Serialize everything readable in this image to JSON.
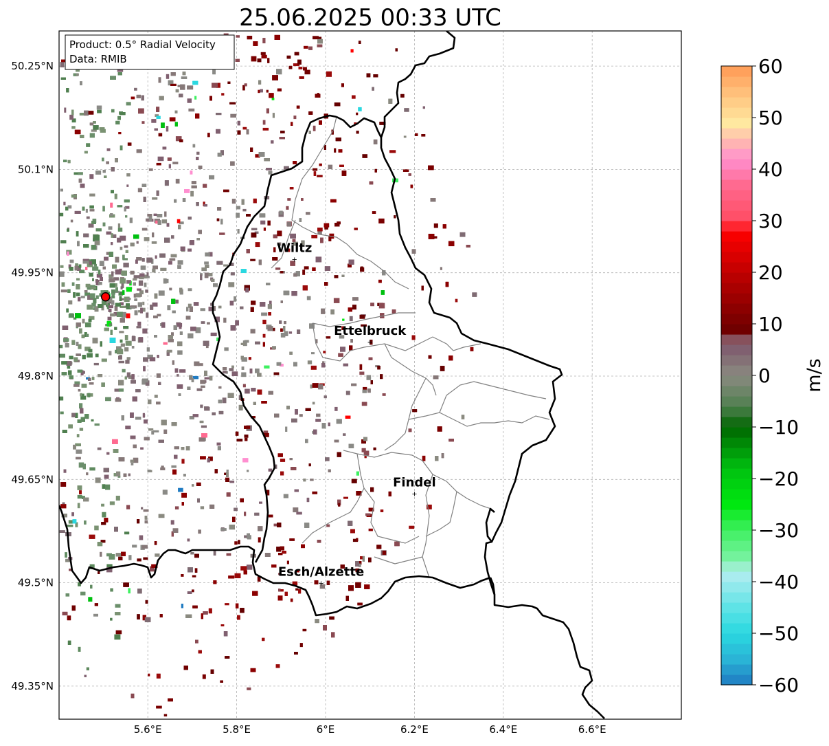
{
  "title": "25.06.2025 00:33 UTC",
  "info_box": {
    "line1": "Product: 0.5° Radial Velocity",
    "line2": "Data: RMIB"
  },
  "map": {
    "lon_ticks": [
      {
        "value": 5.6,
        "label": "5.6°E"
      },
      {
        "value": 5.8,
        "label": "5.8°E"
      },
      {
        "value": 6.0,
        "label": "6°E"
      },
      {
        "value": 6.2,
        "label": "6.2°E"
      },
      {
        "value": 6.4,
        "label": "6.4°E"
      },
      {
        "value": 6.6,
        "label": "6.6°E"
      }
    ],
    "lat_ticks": [
      {
        "value": 50.25,
        "label": "50.25°N"
      },
      {
        "value": 50.1,
        "label": "50.1°N"
      },
      {
        "value": 49.95,
        "label": "49.95°N"
      },
      {
        "value": 49.8,
        "label": "49.8°N"
      },
      {
        "value": 49.65,
        "label": "49.65°N"
      },
      {
        "value": 49.5,
        "label": "49.5°N"
      },
      {
        "value": 49.35,
        "label": "49.35°N"
      }
    ],
    "cities": [
      {
        "name": "Wiltz",
        "lon": 5.93,
        "lat": 49.97
      },
      {
        "name": "Ettelbruck",
        "lon": 6.1,
        "lat": 49.85
      },
      {
        "name": "Findel",
        "lon": 6.2,
        "lat": 49.63
      },
      {
        "name": "Esch/Alzette",
        "lon": 5.99,
        "lat": 49.5
      }
    ],
    "radar_site": {
      "lon": 5.505,
      "lat": 49.915
    }
  },
  "colorbar": {
    "label": "m/s",
    "ticks": [
      60,
      50,
      40,
      30,
      20,
      10,
      0,
      -10,
      -20,
      -30,
      -40,
      -50,
      -60
    ],
    "tick_labels": [
      "60",
      "50",
      "40",
      "30",
      "20",
      "10",
      "0",
      "−10",
      "−20",
      "−30",
      "−40",
      "−50",
      "−60"
    ],
    "min": -60,
    "max": 60,
    "stops": [
      {
        "v": -60,
        "c": "#1f7bc2"
      },
      {
        "v": -55,
        "c": "#2ab4d6"
      },
      {
        "v": -50,
        "c": "#2ad8e0"
      },
      {
        "v": -45,
        "c": "#5ee3e6"
      },
      {
        "v": -38,
        "c": "#b5eef0"
      },
      {
        "v": -36,
        "c": "#7ef2a8"
      },
      {
        "v": -30,
        "c": "#3ef060"
      },
      {
        "v": -25,
        "c": "#00e810"
      },
      {
        "v": -18,
        "c": "#00c010"
      },
      {
        "v": -10,
        "c": "#006600"
      },
      {
        "v": -6,
        "c": "#4f7f4f"
      },
      {
        "v": 0,
        "c": "#8a8a80"
      },
      {
        "v": 5,
        "c": "#806070"
      },
      {
        "v": 8,
        "c": "#8a4a52"
      },
      {
        "v": 9,
        "c": "#700000"
      },
      {
        "v": 18,
        "c": "#b00000"
      },
      {
        "v": 28,
        "c": "#ff0000"
      },
      {
        "v": 30,
        "c": "#ff4c62"
      },
      {
        "v": 37,
        "c": "#ff6a90"
      },
      {
        "v": 42,
        "c": "#ff8fd0"
      },
      {
        "v": 45,
        "c": "#ffb3b3"
      },
      {
        "v": 49,
        "c": "#ffe8a0"
      },
      {
        "v": 55,
        "c": "#ffbf7a"
      },
      {
        "v": 60,
        "c": "#ff9a55"
      }
    ]
  }
}
